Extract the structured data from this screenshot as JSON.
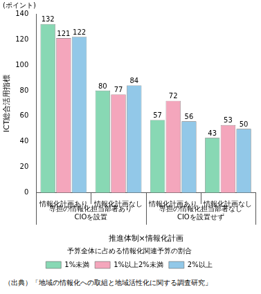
{
  "chart_data": {
    "type": "bar",
    "y_unit": "(ポイント)",
    "ylabel": "ICT総合活用指標",
    "xlabel": "推進体制×情報化計画",
    "categories": [
      "情報化計画あり",
      "情報化計画なし",
      "情報化計画あり",
      "情報化計画なし"
    ],
    "category_groups": [
      {
        "label": [
          "専担の情報化担当部署あり",
          "CIOを設置"
        ],
        "count": 2
      },
      {
        "label": [
          "専担の情報化担当部署なし",
          "CIOを設置せず"
        ],
        "count": 2
      }
    ],
    "legend_title": "予算全体に占める情報化関連予算の割合",
    "series": [
      {
        "name": "1%未満",
        "color": "#88d8b4",
        "values": [
          132,
          80,
          57,
          43
        ]
      },
      {
        "name": "1%以上2%未満",
        "color": "#f4a6bc",
        "values": [
          121,
          77,
          72,
          53
        ]
      },
      {
        "name": "2%以上",
        "color": "#92c8e8",
        "values": [
          122,
          84,
          56,
          50
        ]
      }
    ],
    "ylim": [
      0,
      140
    ],
    "yticks": [
      0,
      20,
      40,
      60,
      80,
      100,
      120,
      140
    ],
    "grid": false,
    "legend": "bottom",
    "data_labels": true,
    "source": "（出典）「地域の情報化への取組と地域活性化に関する調査研究」"
  }
}
